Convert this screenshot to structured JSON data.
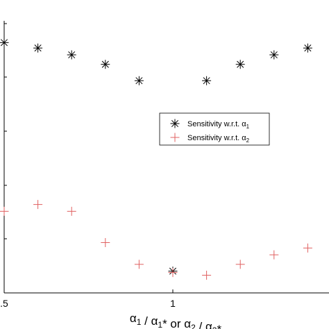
{
  "chart_data": {
    "type": "scatter",
    "xlabel": {
      "parts": [
        {
          "t": "α",
          "sub": "1"
        },
        {
          "t": " / α",
          "sub": "1"
        },
        {
          "t": "* or α",
          "sub": "2"
        },
        {
          "t": " / α",
          "sub": "2"
        },
        {
          "t": "*"
        }
      ]
    },
    "ylabel": "",
    "xlim": [
      0.5,
      1.5
    ],
    "ylim": [
      0,
      1
    ],
    "x_tick_labels": [
      {
        "value": 0.5,
        "label": ".5"
      },
      {
        "value": 1.0,
        "label": "1"
      }
    ],
    "legend": {
      "position": "center-right",
      "entries": [
        {
          "series": 0,
          "label_prefix": "Sensitivity w.r.t. α",
          "label_sub": "1"
        },
        {
          "series": 1,
          "label_prefix": "Sensitivity w.r.t. α",
          "label_sub": "2"
        }
      ]
    },
    "series": [
      {
        "marker": "asterisk",
        "color": "#000000",
        "points": [
          [
            0.5,
            0.92
          ],
          [
            0.6,
            0.9
          ],
          [
            0.7,
            0.875
          ],
          [
            0.8,
            0.84
          ],
          [
            0.9,
            0.78
          ],
          [
            1.0,
            0.08
          ],
          [
            1.1,
            0.78
          ],
          [
            1.2,
            0.84
          ],
          [
            1.3,
            0.875
          ],
          [
            1.4,
            0.9
          ]
        ]
      },
      {
        "marker": "plus",
        "color": "#e06060",
        "points": [
          [
            0.5,
            0.3
          ],
          [
            0.6,
            0.325
          ],
          [
            0.7,
            0.3
          ],
          [
            0.8,
            0.185
          ],
          [
            0.9,
            0.105
          ],
          [
            1.0,
            0.075
          ],
          [
            1.1,
            0.065
          ],
          [
            1.2,
            0.105
          ],
          [
            1.3,
            0.14
          ],
          [
            1.4,
            0.165
          ]
        ]
      }
    ]
  }
}
